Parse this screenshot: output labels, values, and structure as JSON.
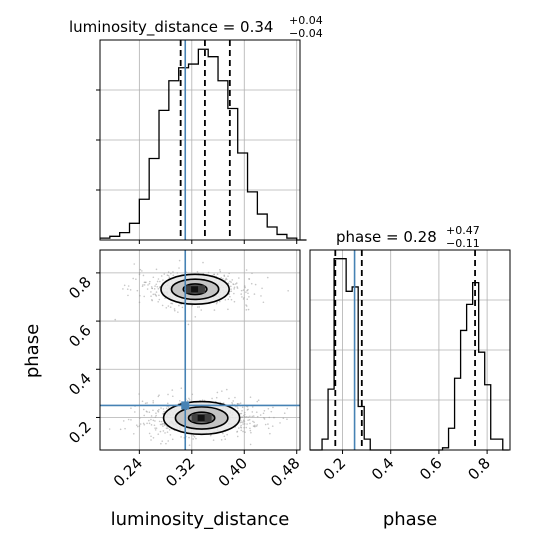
{
  "chart_data": {
    "type": "corner",
    "colors": {
      "truth": "#4682b4",
      "hist": "#000000",
      "grid": "#b0b0b0",
      "density_dark": "#404040",
      "scatter": "#999999"
    },
    "parameters": [
      "luminosity_distance",
      "phase"
    ],
    "truths": {
      "luminosity_distance": 0.31,
      "phase": 0.25
    },
    "axes": {
      "luminosity_distance": {
        "xlim": [
          0.18,
          0.485
        ],
        "ticks": [
          0.24,
          0.32,
          0.4,
          0.48
        ],
        "tick_labels": [
          "0.24",
          "0.32",
          "0.40",
          "0.48"
        ],
        "xlabel": "luminosity_distance"
      },
      "phase": {
        "xlim": [
          0.065,
          0.895
        ],
        "ticks": [
          0.2,
          0.4,
          0.6,
          0.8
        ],
        "tick_labels": [
          "0.2",
          "0.4",
          "0.6",
          "0.8"
        ],
        "xlabel": "phase",
        "ylabel": "phase"
      }
    },
    "diag_titles": [
      {
        "param": "luminosity_distance",
        "main": "luminosity_distance = 0.34",
        "sup": "+0.04",
        "sub": "−0.04"
      },
      {
        "param": "phase",
        "main": "phase = 0.28",
        "sup": "+0.47",
        "sub": "−0.11"
      }
    ],
    "hist_luminosity_distance": {
      "bin_edges": [
        0.18,
        0.195,
        0.21,
        0.225,
        0.24,
        0.255,
        0.27,
        0.285,
        0.3,
        0.315,
        0.33,
        0.345,
        0.36,
        0.375,
        0.39,
        0.405,
        0.42,
        0.435,
        0.45,
        0.465,
        0.48,
        0.495
      ],
      "counts": [
        1,
        2,
        4,
        9,
        22,
        44,
        70,
        86,
        93,
        95,
        103,
        99,
        86,
        71,
        47,
        26,
        14,
        7,
        3,
        1,
        0
      ],
      "ymax": 108,
      "quantiles": [
        0.303,
        0.34,
        0.378
      ]
    },
    "hist_phase": {
      "bin_edges": [
        0.065,
        0.09,
        0.115,
        0.14,
        0.165,
        0.19,
        0.215,
        0.24,
        0.265,
        0.29,
        0.315,
        0.34,
        0.365,
        0.39,
        0.415,
        0.44,
        0.465,
        0.49,
        0.515,
        0.54,
        0.565,
        0.59,
        0.615,
        0.64,
        0.665,
        0.69,
        0.715,
        0.74,
        0.765,
        0.79,
        0.815,
        0.84,
        0.865,
        0.89
      ],
      "counts": [
        0,
        0,
        5,
        28,
        88,
        88,
        73,
        75,
        20,
        5,
        0,
        0,
        0,
        0,
        0,
        0,
        0,
        0,
        0,
        0,
        0,
        0,
        1,
        10,
        33,
        55,
        67,
        77,
        45,
        30,
        5,
        5,
        0
      ],
      "ymax": 92,
      "quantiles": [
        0.17,
        0.28,
        0.75
      ]
    },
    "joint": {
      "clusters": [
        {
          "cx": 0.325,
          "cy": 0.732,
          "sx": 0.03,
          "sy": 0.03,
          "n": 520
        },
        {
          "cx": 0.335,
          "cy": 0.198,
          "sx": 0.032,
          "sy": 0.034,
          "n": 600
        }
      ],
      "contours": [
        {
          "cluster": 0,
          "rx": [
            0.018,
            0.036,
            0.052
          ],
          "ry": [
            0.022,
            0.042,
            0.062
          ]
        },
        {
          "cluster": 1,
          "rx": [
            0.02,
            0.04,
            0.058
          ],
          "ry": [
            0.024,
            0.046,
            0.068
          ]
        }
      ],
      "truth_marker": {
        "x": 0.31,
        "y": 0.25
      }
    }
  }
}
